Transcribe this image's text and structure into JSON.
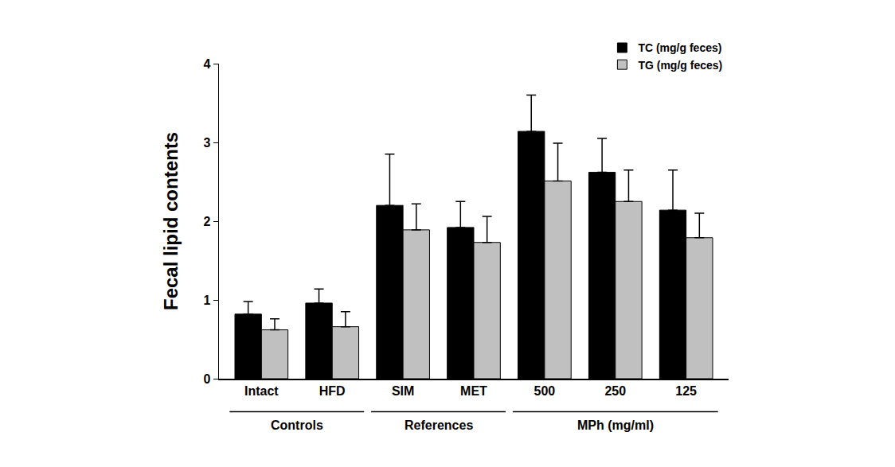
{
  "chart_data": {
    "type": "bar",
    "y_label": "Fecal lipid contents",
    "categories": [
      "Intact",
      "HFD",
      "SIM",
      "MET",
      "500",
      "250",
      "125"
    ],
    "series": [
      {
        "name": "TC (mg/g feces)",
        "color": "#000000",
        "values": [
          0.82,
          0.96,
          2.2,
          1.92,
          3.14,
          2.62,
          2.14
        ],
        "error": [
          0.16,
          0.18,
          0.65,
          0.33,
          0.46,
          0.43,
          0.51
        ]
      },
      {
        "name": "TG (mg/g feces)",
        "color": "#c0c0c0",
        "values": [
          0.62,
          0.66,
          1.89,
          1.73,
          2.51,
          2.25,
          1.79
        ],
        "error": [
          0.14,
          0.19,
          0.33,
          0.33,
          0.48,
          0.4,
          0.31
        ]
      }
    ],
    "annotations": [
      {
        "text": "Controls",
        "categories": [
          "Intact",
          "HFD"
        ]
      },
      {
        "text": "References",
        "categories": [
          "SIM",
          "MET"
        ]
      },
      {
        "text": "MPh (mg/ml)",
        "categories": [
          "500",
          "250",
          "125"
        ]
      }
    ],
    "ylim": [
      0,
      4
    ],
    "yticks": [
      0,
      1,
      2,
      3,
      4
    ],
    "grid": false,
    "legend": "top right"
  }
}
